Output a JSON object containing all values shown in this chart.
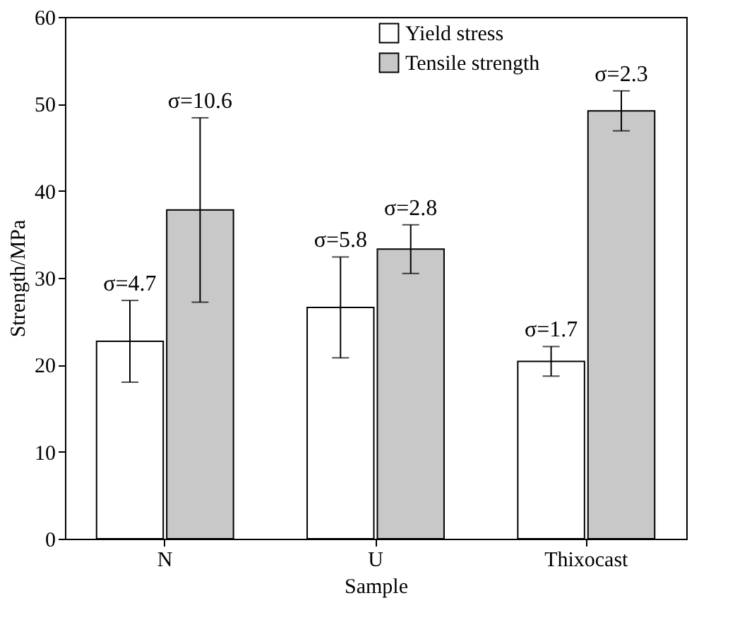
{
  "chart_data": {
    "type": "bar",
    "xlabel": "Sample",
    "ylabel": "Strength/MPa",
    "categories": [
      "N",
      "U",
      "Thixocast"
    ],
    "series": [
      {
        "name": "Yield stress",
        "color": "#ffffff",
        "values": [
          22.7,
          26.6,
          20.4
        ],
        "errors": [
          4.7,
          5.8,
          1.7
        ]
      },
      {
        "name": "Tensile strength",
        "color": "#c8c8c8",
        "values": [
          37.8,
          33.3,
          49.2
        ],
        "errors": [
          10.6,
          2.8,
          2.3
        ]
      }
    ],
    "annotations": [
      "σ=4.7",
      "σ=10.6",
      "σ=5.8",
      "σ=2.8",
      "σ=1.7",
      "σ=2.3"
    ],
    "ylim": [
      0,
      60
    ],
    "yticks": [
      0,
      10,
      20,
      30,
      40,
      50,
      60
    ],
    "grid": false,
    "legend": "top right"
  }
}
